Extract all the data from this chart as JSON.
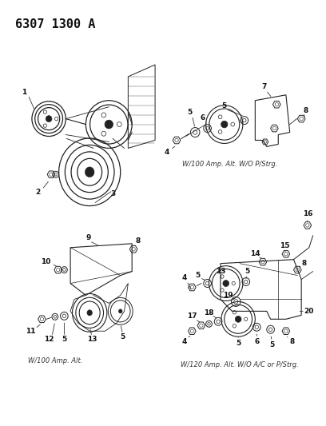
{
  "title": "6307 1300 A",
  "bg_color": "#ffffff",
  "fig_width": 4.08,
  "fig_height": 5.33,
  "dpi": 100,
  "caption_top_right": "W/100 Amp. Alt. W/O P/Strg.",
  "caption_bottom_left": "W/100 Amp. Alt.",
  "caption_bottom_right": "W/120 Amp. Alt. W/O A/C or P/Strg.",
  "line_color": "#222222",
  "label_fontsize": 6.5,
  "caption_fontsize": 6.0
}
